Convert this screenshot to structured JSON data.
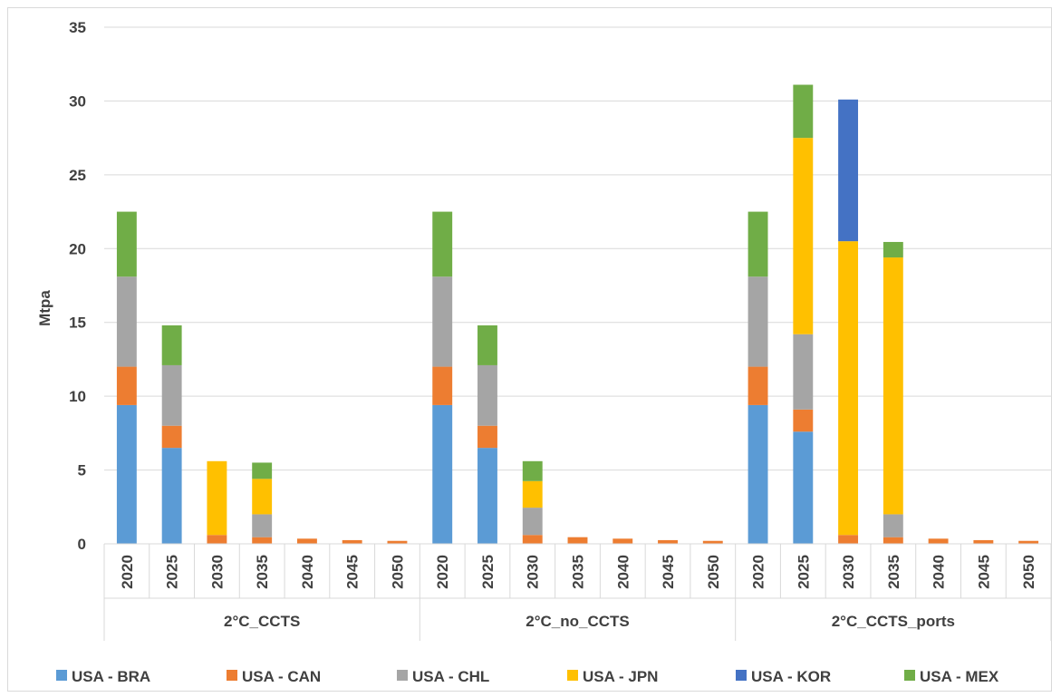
{
  "chart_data": {
    "type": "bar",
    "stacked": true,
    "title": "",
    "xlabel": "",
    "ylabel": "Mtpa",
    "ylim": [
      0,
      35
    ],
    "yticks": [
      0,
      5,
      10,
      15,
      20,
      25,
      30,
      35
    ],
    "grid": true,
    "legend_position": "bottom",
    "groups": [
      {
        "label": "2°C_CCTS",
        "categories": [
          "2020",
          "2025",
          "2030",
          "2035",
          "2040",
          "2045",
          "2050"
        ]
      },
      {
        "label": "2°C_no_CCTS",
        "categories": [
          "2020",
          "2025",
          "2030",
          "2035",
          "2040",
          "2045",
          "2050"
        ]
      },
      {
        "label": "2°C_CCTS_ports",
        "categories": [
          "2020",
          "2025",
          "2030",
          "2035",
          "2040",
          "2045",
          "2050"
        ]
      }
    ],
    "series": [
      {
        "name": "USA - BRA",
        "color": "#5b9bd5",
        "values": [
          9.4,
          6.5,
          0,
          0,
          0,
          0,
          0,
          9.4,
          6.5,
          0,
          0,
          0,
          0,
          0,
          9.4,
          7.6,
          0,
          0,
          0,
          0,
          0
        ]
      },
      {
        "name": "USA - CAN",
        "color": "#ed7d31",
        "values": [
          2.6,
          1.5,
          0.6,
          0.45,
          0.35,
          0.25,
          0.2,
          2.6,
          1.5,
          0.6,
          0.45,
          0.35,
          0.25,
          0.2,
          2.6,
          1.5,
          0.6,
          0.45,
          0.35,
          0.25,
          0.2
        ]
      },
      {
        "name": "USA - CHL",
        "color": "#a5a5a5",
        "values": [
          6.1,
          4.1,
          0,
          1.55,
          0,
          0,
          0,
          6.1,
          4.1,
          1.85,
          0,
          0,
          0,
          0,
          6.1,
          5.1,
          0,
          1.55,
          0,
          0,
          0
        ]
      },
      {
        "name": "USA - JPN",
        "color": "#ffc000",
        "values": [
          0,
          0,
          5.0,
          2.4,
          0,
          0,
          0,
          0,
          0,
          1.8,
          0,
          0,
          0,
          0,
          0,
          13.3,
          19.9,
          17.4,
          0,
          0,
          0
        ]
      },
      {
        "name": "USA - KOR",
        "color": "#4472c4",
        "values": [
          0,
          0,
          0,
          0,
          0,
          0,
          0,
          0,
          0,
          0,
          0,
          0,
          0,
          0,
          0,
          0,
          9.6,
          0,
          0,
          0,
          0
        ]
      },
      {
        "name": "USA - MEX",
        "color": "#70ad47",
        "values": [
          4.4,
          2.7,
          0,
          1.1,
          0,
          0,
          0,
          4.4,
          2.7,
          1.35,
          0,
          0,
          0,
          0,
          4.4,
          3.6,
          0,
          1.05,
          0,
          0,
          0
        ]
      }
    ]
  }
}
